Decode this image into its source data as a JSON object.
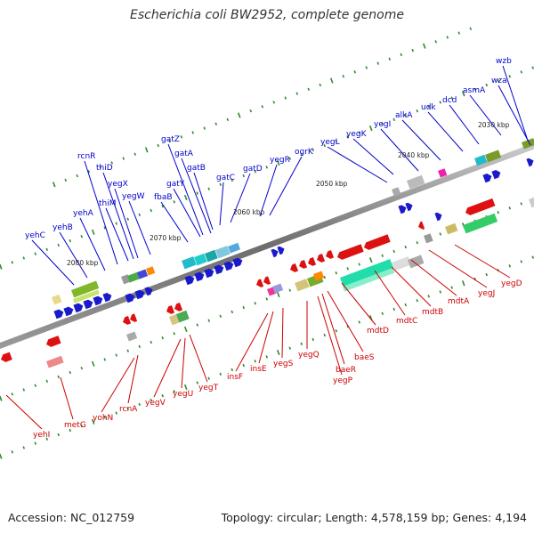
{
  "title": "Escherichia coli BW2952, complete genome",
  "footer": {
    "accession": "Accession: NC_012759",
    "summary": "Topology: circular; Length: 4,578,159 bp; Genes: 4,194"
  },
  "colors": {
    "forward_label": "#0000cc",
    "reverse_label": "#cc0000",
    "backbone": "#777777",
    "tick": "#2e8b2e"
  },
  "scale_labels": [
    "2030 kbp",
    "2040 kbp",
    "2050 kbp",
    "2060 kbp",
    "2070 kbp",
    "2080 kbp"
  ],
  "forward_genes": [
    "wzb",
    "wza",
    "asmA",
    "dcd",
    "udk",
    "alkA",
    "yegI",
    "yegK",
    "yegL",
    "ogrK",
    "yegR",
    "gatD",
    "gatC",
    "gatB",
    "gatA",
    "gatZ",
    "gatY",
    "fbaB",
    "yegW",
    "yegX",
    "thiD",
    "thiM",
    "rcnR",
    "yehA",
    "yehB",
    "yehC"
  ],
  "reverse_genes": [
    "yegD",
    "yegJ",
    "mdtA",
    "mdtB",
    "mdtC",
    "mdtD",
    "baeS",
    "baeR",
    "yegP",
    "yegQ",
    "yegS",
    "insE",
    "insF",
    "yegT",
    "yegU",
    "yegV",
    "rcnA",
    "yohN",
    "metG",
    "yehI"
  ]
}
